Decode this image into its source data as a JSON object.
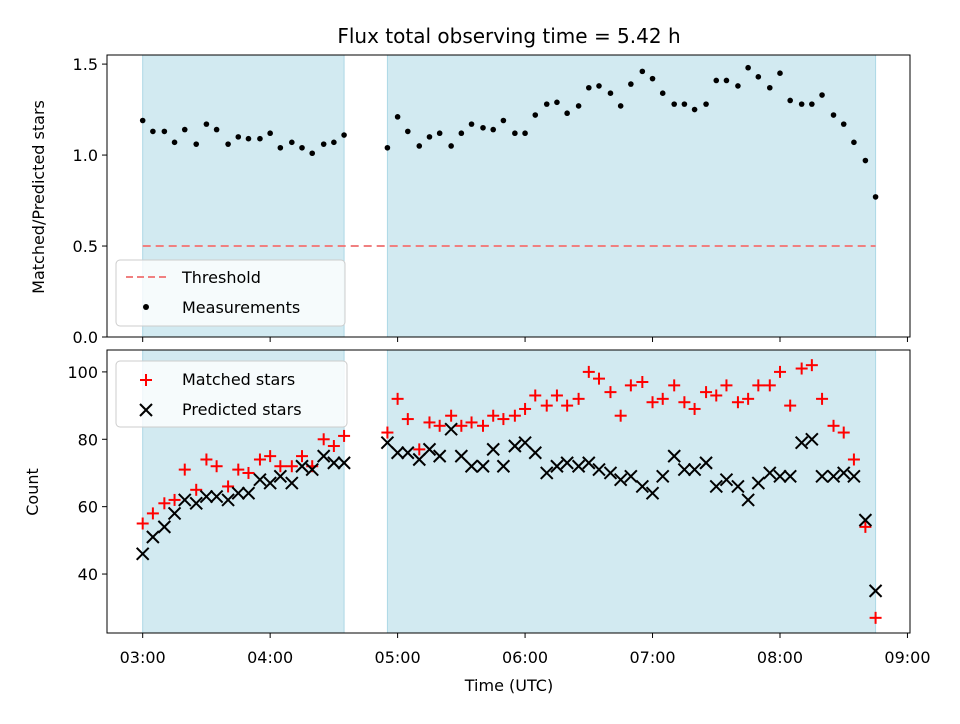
{
  "chart_data": {
    "type": "scatter",
    "title": "Flux total observing time = 5.42 h",
    "xlabel": "Time (UTC)",
    "x_ticks": [
      "03:00",
      "04:00",
      "05:00",
      "06:00",
      "07:00",
      "08:00",
      "09:00"
    ],
    "x_range_hours": [
      2.72,
      9.02
    ],
    "shaded_intervals_hours": [
      [
        3.0,
        4.58
      ],
      [
        4.92,
        8.75
      ]
    ],
    "shade_color": "#add8e6",
    "panels": [
      {
        "id": "ratio",
        "ylabel": "Matched/Predicted stars",
        "ylim": [
          0.0,
          1.55
        ],
        "y_ticks": [
          "0.0",
          "0.5",
          "1.0",
          "1.5"
        ],
        "legend_position": "lower-left",
        "threshold": {
          "name": "Threshold",
          "value": 0.5,
          "color": "#f08080",
          "style": "dashed"
        },
        "series": [
          {
            "name": "Measurements",
            "marker": "dot",
            "color": "#000000",
            "x": [
              3.0,
              3.08,
              3.17,
              3.25,
              3.33,
              3.42,
              3.5,
              3.58,
              3.67,
              3.75,
              3.83,
              3.92,
              4.0,
              4.08,
              4.17,
              4.25,
              4.33,
              4.42,
              4.5,
              4.58,
              4.92,
              5.0,
              5.08,
              5.17,
              5.25,
              5.33,
              5.42,
              5.5,
              5.58,
              5.67,
              5.75,
              5.83,
              5.92,
              6.0,
              6.08,
              6.17,
              6.25,
              6.33,
              6.42,
              6.5,
              6.58,
              6.67,
              6.75,
              6.83,
              6.92,
              7.0,
              7.08,
              7.17,
              7.25,
              7.33,
              7.42,
              7.5,
              7.58,
              7.67,
              7.75,
              7.83,
              7.92,
              8.0,
              8.08,
              8.17,
              8.25,
              8.33,
              8.42,
              8.5,
              8.58,
              8.67,
              8.75
            ],
            "y": [
              1.19,
              1.13,
              1.13,
              1.07,
              1.14,
              1.06,
              1.17,
              1.14,
              1.06,
              1.1,
              1.09,
              1.09,
              1.12,
              1.04,
              1.07,
              1.04,
              1.01,
              1.06,
              1.07,
              1.11,
              1.04,
              1.21,
              1.13,
              1.05,
              1.1,
              1.12,
              1.05,
              1.12,
              1.17,
              1.15,
              1.14,
              1.19,
              1.12,
              1.12,
              1.22,
              1.28,
              1.29,
              1.23,
              1.27,
              1.37,
              1.38,
              1.34,
              1.27,
              1.39,
              1.46,
              1.42,
              1.34,
              1.28,
              1.28,
              1.25,
              1.28,
              1.41,
              1.41,
              1.38,
              1.48,
              1.43,
              1.37,
              1.45,
              1.3,
              1.28,
              1.28,
              1.33,
              1.22,
              1.17,
              1.07,
              0.97,
              0.77
            ]
          }
        ]
      },
      {
        "id": "counts",
        "ylabel": "Count",
        "ylim": [
          22.5,
          106.5
        ],
        "y_ticks": [
          "40",
          "60",
          "80",
          "100"
        ],
        "legend_position": "upper-left",
        "series": [
          {
            "name": "Matched stars",
            "marker": "plus",
            "color": "#ff0000",
            "x": [
              3.0,
              3.08,
              3.17,
              3.25,
              3.33,
              3.42,
              3.5,
              3.58,
              3.67,
              3.75,
              3.83,
              3.92,
              4.0,
              4.08,
              4.17,
              4.25,
              4.33,
              4.42,
              4.5,
              4.58,
              4.92,
              5.0,
              5.08,
              5.17,
              5.25,
              5.33,
              5.42,
              5.5,
              5.58,
              5.67,
              5.75,
              5.83,
              5.92,
              6.0,
              6.08,
              6.17,
              6.25,
              6.33,
              6.42,
              6.5,
              6.58,
              6.67,
              6.75,
              6.83,
              6.92,
              7.0,
              7.08,
              7.17,
              7.25,
              7.33,
              7.42,
              7.5,
              7.58,
              7.67,
              7.75,
              7.83,
              7.92,
              8.0,
              8.08,
              8.17,
              8.25,
              8.33,
              8.42,
              8.5,
              8.58,
              8.67,
              8.75
            ],
            "y": [
              55,
              58,
              61,
              62,
              71,
              65,
              74,
              72,
              66,
              71,
              70,
              74,
              75,
              72,
              72,
              75,
              72,
              80,
              78,
              81,
              82,
              92,
              86,
              77,
              85,
              84,
              87,
              84,
              85,
              84,
              87,
              86,
              87,
              89,
              93,
              90,
              93,
              90,
              92,
              100,
              98,
              94,
              87,
              96,
              97,
              91,
              92,
              96,
              91,
              89,
              94,
              93,
              96,
              91,
              92,
              96,
              96,
              100,
              90,
              101,
              102,
              92,
              84,
              82,
              74,
              54,
              27
            ]
          },
          {
            "name": "Predicted stars",
            "marker": "x",
            "color": "#000000",
            "x": [
              3.0,
              3.08,
              3.17,
              3.25,
              3.33,
              3.42,
              3.5,
              3.58,
              3.67,
              3.75,
              3.83,
              3.92,
              4.0,
              4.08,
              4.17,
              4.25,
              4.33,
              4.42,
              4.5,
              4.58,
              4.92,
              5.0,
              5.08,
              5.17,
              5.25,
              5.33,
              5.42,
              5.5,
              5.58,
              5.67,
              5.75,
              5.83,
              5.92,
              6.0,
              6.08,
              6.17,
              6.25,
              6.33,
              6.42,
              6.5,
              6.58,
              6.67,
              6.75,
              6.83,
              6.92,
              7.0,
              7.08,
              7.17,
              7.25,
              7.33,
              7.42,
              7.5,
              7.58,
              7.67,
              7.75,
              7.83,
              7.92,
              8.0,
              8.08,
              8.17,
              8.25,
              8.33,
              8.42,
              8.5,
              8.58,
              8.67,
              8.75
            ],
            "y": [
              46,
              51,
              54,
              58,
              62,
              61,
              63,
              63,
              62,
              64,
              64,
              68,
              67,
              69,
              67,
              72,
              71,
              75,
              73,
              73,
              79,
              76,
              76,
              74,
              77,
              75,
              83,
              75,
              72,
              72,
              77,
              72,
              78,
              79,
              76,
              70,
              72,
              73,
              72,
              73,
              71,
              70,
              68,
              69,
              66,
              64,
              69,
              75,
              71,
              71,
              73,
              66,
              68,
              66,
              62,
              67,
              70,
              69,
              69,
              79,
              80,
              69,
              69,
              70,
              69,
              56,
              35
            ]
          }
        ]
      }
    ]
  }
}
